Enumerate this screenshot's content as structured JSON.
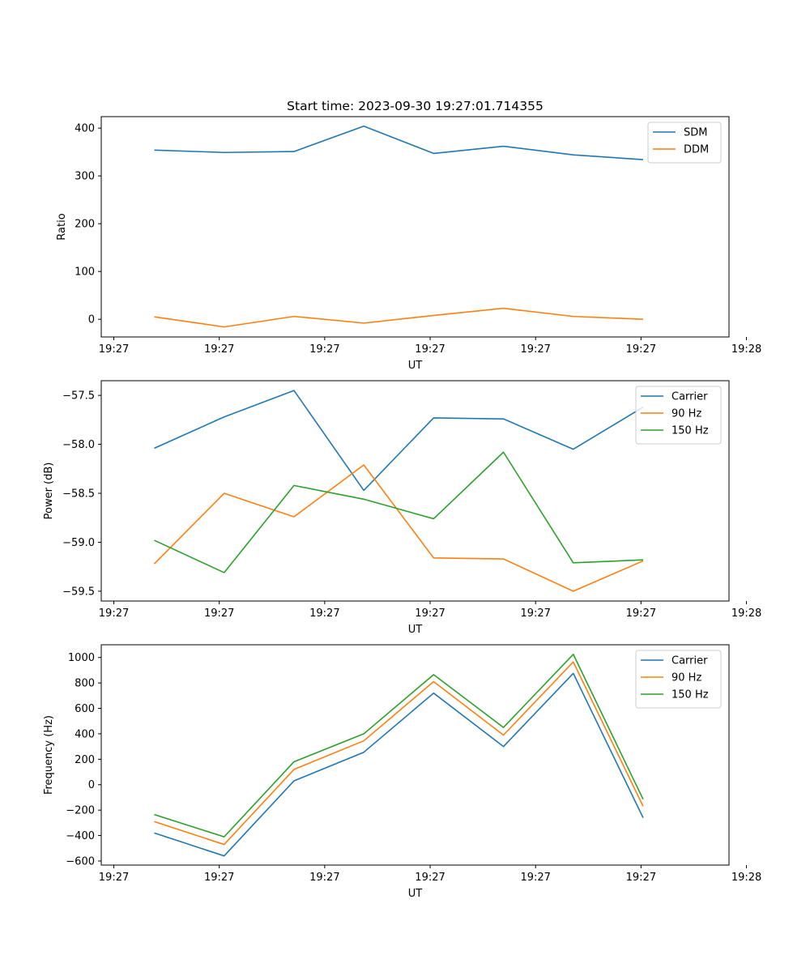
{
  "title": "Start time: 2023-09-30 19:27:01.714355",
  "chart_data": [
    {
      "type": "line",
      "title": "Start time: 2023-09-30 19:27:01.714355",
      "xlabel": "UT",
      "ylabel": "Ratio",
      "x_tick_labels": [
        "19:27",
        "19:27",
        "19:27",
        "19:27",
        "19:27",
        "19:27",
        "19:28"
      ],
      "y_ticks": [
        0,
        100,
        200,
        300,
        400
      ],
      "y_tick_labels": [
        "0",
        "100",
        "200",
        "300",
        "400"
      ],
      "ylim": [
        -37,
        424
      ],
      "legend_position": "top-right",
      "x": [
        1,
        2,
        3,
        4,
        5,
        6,
        7,
        8
      ],
      "xlim": [
        0.24,
        9.23
      ],
      "x_tick_positions": [
        0.42,
        1.93,
        3.44,
        4.95,
        6.46,
        7.97,
        9.48
      ],
      "series": [
        {
          "name": "SDM",
          "color": "#1f77b4",
          "values": [
            354,
            349,
            351,
            404,
            347,
            362,
            344,
            334
          ]
        },
        {
          "name": "DDM",
          "color": "#ff7f0e",
          "values": [
            5,
            -16,
            6,
            -8,
            8,
            23,
            6,
            0
          ]
        }
      ]
    },
    {
      "type": "line",
      "title": "",
      "xlabel": "UT",
      "ylabel": "Power (dB)",
      "x_tick_labels": [
        "19:27",
        "19:27",
        "19:27",
        "19:27",
        "19:27",
        "19:27",
        "19:28"
      ],
      "y_ticks": [
        -57.5,
        -58.0,
        -58.5,
        -59.0,
        -59.5
      ],
      "y_tick_labels": [
        "−57.5",
        "−58.0",
        "−58.5",
        "−59.0",
        "−59.5"
      ],
      "ylim": [
        -59.6,
        -57.35
      ],
      "legend_position": "top-right",
      "x": [
        1,
        2,
        3,
        4,
        5,
        6,
        7,
        8
      ],
      "xlim": [
        0.24,
        9.23
      ],
      "x_tick_positions": [
        0.42,
        1.93,
        3.44,
        4.95,
        6.46,
        7.97,
        9.48
      ],
      "series": [
        {
          "name": "Carrier",
          "color": "#1f77b4",
          "values": [
            -58.04,
            -57.72,
            -57.45,
            -58.47,
            -57.73,
            -57.74,
            -58.05,
            -57.62
          ]
        },
        {
          "name": "90 Hz",
          "color": "#ff7f0e",
          "values": [
            -59.22,
            -58.5,
            -58.74,
            -58.21,
            -59.16,
            -59.17,
            -59.5,
            -59.19
          ]
        },
        {
          "name": "150 Hz",
          "color": "#2ca02c",
          "values": [
            -58.98,
            -59.31,
            -58.42,
            -58.56,
            -58.76,
            -58.08,
            -59.21,
            -59.18
          ]
        }
      ]
    },
    {
      "type": "line",
      "title": "",
      "xlabel": "UT",
      "ylabel": "Frequency (Hz)",
      "x_tick_labels": [
        "19:27",
        "19:27",
        "19:27",
        "19:27",
        "19:27",
        "19:27",
        "19:28"
      ],
      "y_ticks": [
        1000,
        800,
        600,
        400,
        200,
        0,
        -200,
        -400,
        -600
      ],
      "y_tick_labels": [
        "1000",
        "800",
        "600",
        "400",
        "200",
        "0",
        "−200",
        "−400",
        "−600"
      ],
      "ylim": [
        -632,
        1100
      ],
      "legend_position": "top-right",
      "x": [
        1,
        2,
        3,
        4,
        5,
        6,
        7,
        8
      ],
      "xlim": [
        0.24,
        9.23
      ],
      "x_tick_positions": [
        0.42,
        1.93,
        3.44,
        4.95,
        6.46,
        7.97,
        9.48
      ],
      "series": [
        {
          "name": "Carrier",
          "color": "#1f77b4",
          "values": [
            -380,
            -560,
            30,
            255,
            720,
            300,
            875,
            -260
          ]
        },
        {
          "name": "90 Hz",
          "color": "#ff7f0e",
          "values": [
            -290,
            -470,
            120,
            345,
            810,
            390,
            965,
            -170
          ]
        },
        {
          "name": "150 Hz",
          "color": "#2ca02c",
          "values": [
            -235,
            -410,
            180,
            400,
            865,
            450,
            1025,
            -115
          ]
        }
      ]
    }
  ]
}
